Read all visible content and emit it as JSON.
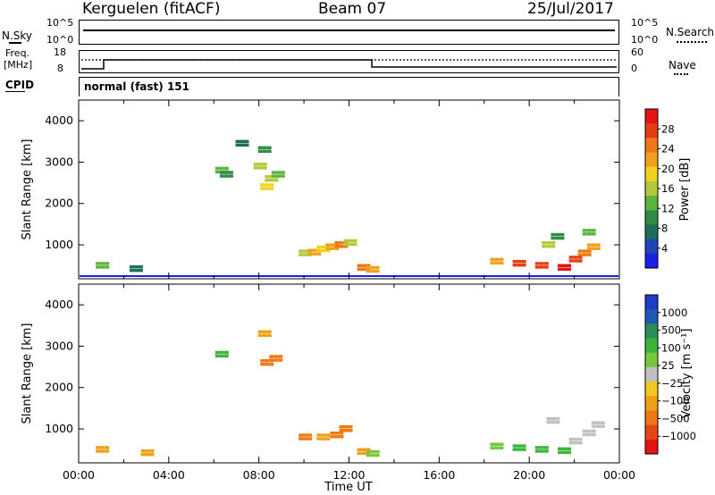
{
  "header": {
    "radar": "Kerguelen (fitACF)",
    "beam": "Beam 07",
    "date": "25/Jul/2017"
  },
  "panels": {
    "nsky": {
      "label": "N.Sky",
      "ymax": "10^5",
      "ymin": "10^0",
      "right_label": "N.Search",
      "right_ymax": "10^5",
      "right_ymin": "10^0"
    },
    "freq": {
      "label_1": "Freq.",
      "label_2": "[MHz]",
      "ymax": "18",
      "ymin": "8",
      "right_label": "Nave",
      "right_ymax": "60",
      "right_ymin": "0"
    },
    "cpid": {
      "label": "CPID",
      "value": "normal (fast) 151"
    }
  },
  "colors": {
    "power_scale": [
      "#1e1ee6",
      "#1e46b4",
      "#1e6e5a",
      "#2e8c46",
      "#5ab43c",
      "#b4c83c",
      "#f0d21e",
      "#f0a01e",
      "#f07814",
      "#e63c14",
      "#e61414"
    ],
    "velocity_scale": [
      "#1e3cc8",
      "#1e5ab4",
      "#2e8c5a",
      "#3cb43c",
      "#78c83c",
      "#c0c0c0",
      "#f0c81e",
      "#f0a014",
      "#f07814",
      "#e64614",
      "#e61414"
    ]
  },
  "chart_data": [
    {
      "type": "heatmap",
      "title": "Power",
      "xlabel": "Time UT",
      "ylabel": "Slant Range [km]",
      "colorbar_label": "Power [dB]",
      "colorbar_ticks": [
        "4",
        "8",
        "12",
        "16",
        "20",
        "24",
        "28"
      ],
      "xticks": [
        "00:00",
        "04:00",
        "08:00",
        "12:00",
        "16:00",
        "20:00",
        "00:00"
      ],
      "yticks": [
        "1000",
        "2000",
        "3000",
        "4000"
      ],
      "xlim": [
        0,
        24
      ],
      "ylim": [
        180,
        4500
      ],
      "clim": [
        0,
        30
      ],
      "cells": [
        {
          "t": 6.3,
          "r": 2800,
          "v": 12
        },
        {
          "t": 6.5,
          "r": 2700,
          "v": 8
        },
        {
          "t": 7.2,
          "r": 3450,
          "v": 6
        },
        {
          "t": 8.2,
          "r": 3300,
          "v": 8
        },
        {
          "t": 8.0,
          "r": 2900,
          "v": 14
        },
        {
          "t": 8.5,
          "r": 2600,
          "v": 16
        },
        {
          "t": 8.8,
          "r": 2700,
          "v": 12
        },
        {
          "t": 8.3,
          "r": 2400,
          "v": 18
        },
        {
          "t": 10.0,
          "r": 800,
          "v": 16
        },
        {
          "t": 10.4,
          "r": 820,
          "v": 22
        },
        {
          "t": 10.8,
          "r": 900,
          "v": 18
        },
        {
          "t": 11.2,
          "r": 950,
          "v": 20
        },
        {
          "t": 11.6,
          "r": 1000,
          "v": 24
        },
        {
          "t": 12.0,
          "r": 1050,
          "v": 14
        },
        {
          "t": 12.6,
          "r": 450,
          "v": 24
        },
        {
          "t": 13.0,
          "r": 400,
          "v": 20
        },
        {
          "t": 18.5,
          "r": 600,
          "v": 22
        },
        {
          "t": 19.5,
          "r": 550,
          "v": 26
        },
        {
          "t": 20.5,
          "r": 500,
          "v": 28
        },
        {
          "t": 21.5,
          "r": 450,
          "v": 30
        },
        {
          "t": 22.0,
          "r": 650,
          "v": 26
        },
        {
          "t": 22.4,
          "r": 800,
          "v": 24
        },
        {
          "t": 22.8,
          "r": 950,
          "v": 20
        },
        {
          "t": 21.2,
          "r": 1200,
          "v": 10
        },
        {
          "t": 22.6,
          "r": 1300,
          "v": 12
        },
        {
          "t": 20.8,
          "r": 1000,
          "v": 16
        },
        {
          "t": 1.0,
          "r": 500,
          "v": 12
        },
        {
          "t": 2.5,
          "r": 420,
          "v": 6
        }
      ]
    },
    {
      "type": "heatmap",
      "title": "Velocity",
      "xlabel": "Time UT",
      "ylabel": "Slant Range [km]",
      "colorbar_label": "Velocity [m s⁻¹]",
      "colorbar_ticks": [
        "1000",
        "500",
        "100",
        "25",
        "−25",
        "−100",
        "−500",
        "−1000"
      ],
      "xticks": [
        "00:00",
        "04:00",
        "08:00",
        "12:00",
        "16:00",
        "20:00",
        "00:00"
      ],
      "yticks": [
        "1000",
        "2000",
        "3000",
        "4000"
      ],
      "xlim": [
        0,
        24
      ],
      "ylim": [
        180,
        4500
      ],
      "cells": [
        {
          "t": 6.3,
          "r": 2800,
          "v": 150
        },
        {
          "t": 8.3,
          "r": 2600,
          "v": -200
        },
        {
          "t": 8.7,
          "r": 2700,
          "v": -150
        },
        {
          "t": 8.2,
          "r": 3300,
          "v": -100
        },
        {
          "t": 10.0,
          "r": 800,
          "v": -150
        },
        {
          "t": 10.8,
          "r": 800,
          "v": -100
        },
        {
          "t": 11.4,
          "r": 850,
          "v": -300
        },
        {
          "t": 11.8,
          "r": 1000,
          "v": -400
        },
        {
          "t": 12.6,
          "r": 450,
          "v": -50
        },
        {
          "t": 13.0,
          "r": 400,
          "v": 80
        },
        {
          "t": 18.5,
          "r": 580,
          "v": 80
        },
        {
          "t": 19.5,
          "r": 540,
          "v": 150
        },
        {
          "t": 20.5,
          "r": 500,
          "v": 200
        },
        {
          "t": 21.5,
          "r": 470,
          "v": 150
        },
        {
          "t": 22.0,
          "r": 700,
          "v": 0
        },
        {
          "t": 22.6,
          "r": 900,
          "v": 10
        },
        {
          "t": 21.0,
          "r": 1200,
          "v": -10
        },
        {
          "t": 23.0,
          "r": 1100,
          "v": 0
        },
        {
          "t": 1.0,
          "r": 500,
          "v": -50
        },
        {
          "t": 3.0,
          "r": 420,
          "v": -30
        }
      ]
    }
  ]
}
